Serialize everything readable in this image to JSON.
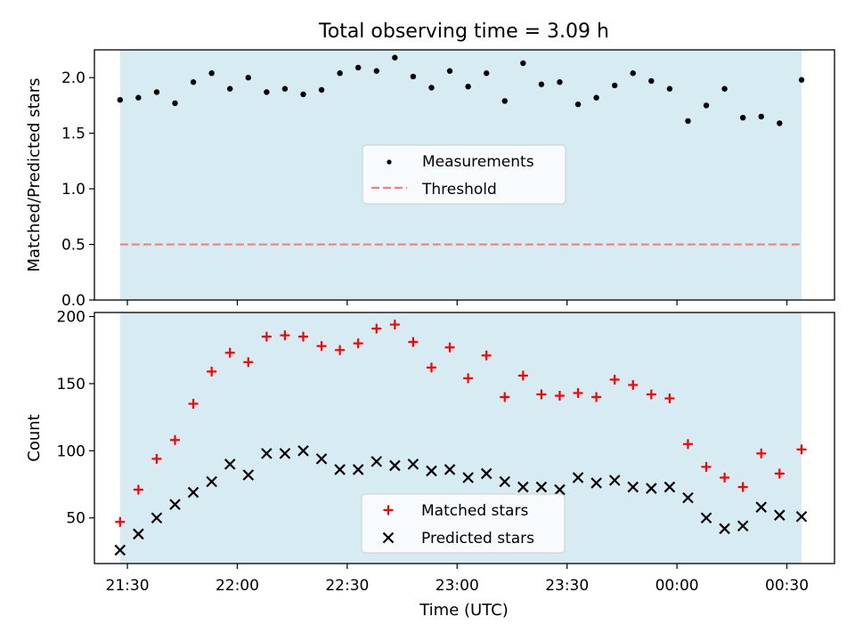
{
  "figure": {
    "title": "Total observing time = 3.09 h",
    "xlabel": "Time (UTC)"
  },
  "colors": {
    "shade": "#add8e6",
    "measurements": "#000000",
    "threshold": "#f08080",
    "matched": "#ff0000",
    "predicted": "#000000"
  },
  "chart_data": [
    {
      "type": "scatter",
      "ylabel": "Matched/Predicted stars",
      "ylim": [
        0,
        2.25
      ],
      "yticks": [
        0.0,
        0.5,
        1.0,
        1.5,
        2.0
      ],
      "ytick_labels": [
        "0.0",
        "0.5",
        "1.0",
        "1.5",
        "2.0"
      ],
      "xlim": [
        "21:21",
        "00:43"
      ],
      "xticks": [
        "21:30",
        "22:00",
        "22:30",
        "23:00",
        "23:30",
        "00:00",
        "00:30"
      ],
      "xtick_labels_visible": false,
      "shaded_span": [
        "21:28",
        "00:34"
      ],
      "legend_position": "center",
      "series": [
        {
          "name": "Measurements",
          "marker": "dot",
          "x": [
            "21:28",
            "21:33",
            "21:38",
            "21:43",
            "21:48",
            "21:53",
            "21:58",
            "22:03",
            "22:08",
            "22:13",
            "22:18",
            "22:23",
            "22:28",
            "22:33",
            "22:38",
            "22:43",
            "22:48",
            "22:53",
            "22:58",
            "23:03",
            "23:08",
            "23:13",
            "23:18",
            "23:23",
            "23:28",
            "23:33",
            "23:38",
            "23:43",
            "23:48",
            "23:53",
            "23:58",
            "00:03",
            "00:08",
            "00:13",
            "00:18",
            "00:23",
            "00:28",
            "00:34"
          ],
          "values": [
            1.8,
            1.82,
            1.87,
            1.77,
            1.96,
            2.04,
            1.9,
            2.0,
            1.87,
            1.9,
            1.85,
            1.89,
            2.04,
            2.09,
            2.06,
            2.18,
            2.01,
            1.91,
            2.06,
            1.92,
            2.04,
            1.79,
            2.13,
            1.94,
            1.96,
            1.76,
            1.82,
            1.93,
            2.04,
            1.97,
            1.9,
            1.61,
            1.75,
            1.9,
            1.64,
            1.65,
            1.59,
            1.98
          ]
        },
        {
          "name": "Threshold",
          "style": "dashed",
          "x": [
            "21:28",
            "00:34"
          ],
          "values": [
            0.5,
            0.5
          ]
        }
      ]
    },
    {
      "type": "scatter",
      "ylabel": "Count",
      "ylim": [
        16,
        203
      ],
      "yticks": [
        50,
        100,
        150,
        200
      ],
      "ytick_labels": [
        "50",
        "100",
        "150",
        "200"
      ],
      "xlim": [
        "21:21",
        "00:43"
      ],
      "xticks": [
        "21:30",
        "22:00",
        "22:30",
        "23:00",
        "23:30",
        "00:00",
        "00:30"
      ],
      "xtick_labels": [
        "21:30",
        "22:00",
        "22:30",
        "23:00",
        "23:30",
        "00:00",
        "00:30"
      ],
      "shaded_span": [
        "21:28",
        "00:34"
      ],
      "legend_position": "lower center",
      "series": [
        {
          "name": "Matched stars",
          "marker": "plus",
          "x": [
            "21:28",
            "21:33",
            "21:38",
            "21:43",
            "21:48",
            "21:53",
            "21:58",
            "22:03",
            "22:08",
            "22:13",
            "22:18",
            "22:23",
            "22:28",
            "22:33",
            "22:38",
            "22:43",
            "22:48",
            "22:53",
            "22:58",
            "23:03",
            "23:08",
            "23:13",
            "23:18",
            "23:23",
            "23:28",
            "23:33",
            "23:38",
            "23:43",
            "23:48",
            "23:53",
            "23:58",
            "00:03",
            "00:08",
            "00:13",
            "00:18",
            "00:23",
            "00:28",
            "00:34"
          ],
          "values": [
            47,
            71,
            94,
            108,
            135,
            159,
            173,
            166,
            185,
            186,
            185,
            178,
            175,
            180,
            191,
            194,
            181,
            162,
            177,
            154,
            171,
            140,
            156,
            142,
            141,
            143,
            140,
            153,
            149,
            142,
            139,
            105,
            88,
            80,
            73,
            98,
            83,
            101
          ]
        },
        {
          "name": "Predicted stars",
          "marker": "x",
          "x": [
            "21:28",
            "21:33",
            "21:38",
            "21:43",
            "21:48",
            "21:53",
            "21:58",
            "22:03",
            "22:08",
            "22:13",
            "22:18",
            "22:23",
            "22:28",
            "22:33",
            "22:38",
            "22:43",
            "22:48",
            "22:53",
            "22:58",
            "23:03",
            "23:08",
            "23:13",
            "23:18",
            "23:23",
            "23:28",
            "23:33",
            "23:38",
            "23:43",
            "23:48",
            "23:53",
            "23:58",
            "00:03",
            "00:08",
            "00:13",
            "00:18",
            "00:23",
            "00:28",
            "00:34"
          ],
          "values": [
            26,
            38,
            50,
            60,
            69,
            77,
            90,
            82,
            98,
            98,
            100,
            94,
            86,
            86,
            92,
            89,
            90,
            85,
            86,
            80,
            83,
            77,
            73,
            73,
            71,
            80,
            76,
            78,
            73,
            72,
            73,
            65,
            50,
            42,
            44,
            58,
            52,
            51
          ]
        }
      ]
    }
  ]
}
